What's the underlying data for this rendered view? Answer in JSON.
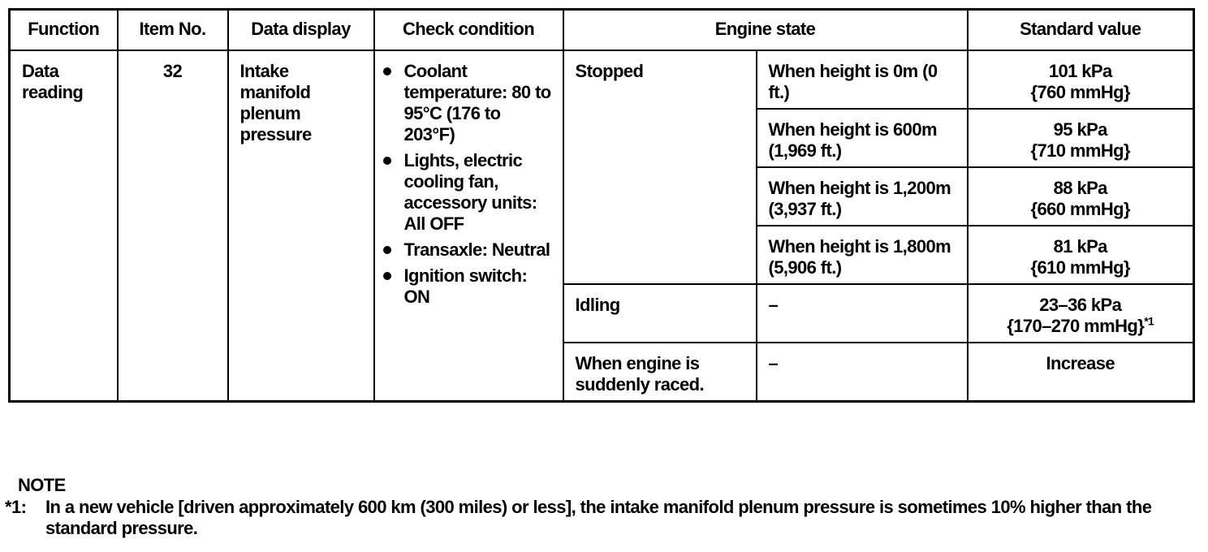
{
  "headers": [
    "Function",
    "Item No.",
    "Data display",
    "Check condition",
    "Engine state",
    "Standard value"
  ],
  "function": "Data reading",
  "item_no": "32",
  "data_display": "Intake manifold plenum pressure",
  "check_conditions": [
    "Coolant temperature: 80 to 95°C (176 to 203°F)",
    "Lights, electric cooling fan, accessory units: All OFF",
    "Transaxle: Neutral",
    "Ignition switch: ON"
  ],
  "rows": [
    {
      "state": "Stopped",
      "condition": "When height is 0m (0 ft.)",
      "value": "101 kPa",
      "value2": "{760 mmHg}"
    },
    {
      "condition": "When height is 600m (1,969 ft.)",
      "value": "95 kPa",
      "value2": "{710 mmHg}"
    },
    {
      "condition": "When height is 1,200m (3,937 ft.)",
      "value": "88 kPa",
      "value2": "{660 mmHg}"
    },
    {
      "condition": "When height is 1,800m (5,906 ft.)",
      "value": "81 kPa",
      "value2": "{610 mmHg}"
    },
    {
      "state": "Idling",
      "condition": "–",
      "value": "23–36 kPa",
      "value2": "{170–270 mmHg}",
      "footnote": "*1"
    },
    {
      "state": "When engine is suddenly raced.",
      "condition": "–",
      "value": "Increase"
    }
  ],
  "note": {
    "title": "NOTE",
    "mark": "*1:",
    "text": "In a new vehicle [driven approximately 600 km (300 miles) or less], the intake manifold plenum pressure is sometimes 10% higher than the standard pressure."
  }
}
